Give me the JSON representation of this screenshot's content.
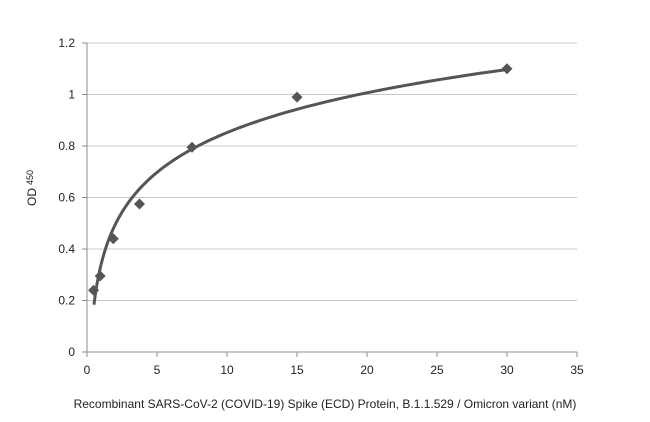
{
  "chart_data": {
    "type": "scatter",
    "title": "",
    "xlabel": "Recombinant SARS-CoV-2  (COVID-19) Spike (ECD)  Protein, B.1.1.529 / Omicron variant (nM)",
    "ylabel": "OD",
    "ylabel_subscript": "450",
    "xlim": [
      0,
      35
    ],
    "ylim": [
      0,
      1.2
    ],
    "x_ticks": [
      "0",
      "5",
      "10",
      "15",
      "20",
      "25",
      "30",
      "35"
    ],
    "y_ticks": [
      "0",
      "0.2",
      "0.4",
      "0.6",
      "0.8",
      "1",
      "1.2"
    ],
    "grid": "horizontal",
    "legend": "none",
    "marker_color": "#555555",
    "series": [
      {
        "points": [
          {
            "x": 0.47,
            "y": 0.24
          },
          {
            "x": 0.94,
            "y": 0.295
          },
          {
            "x": 1.88,
            "y": 0.44
          },
          {
            "x": 3.75,
            "y": 0.575
          },
          {
            "x": 7.5,
            "y": 0.795
          },
          {
            "x": 15,
            "y": 0.99
          },
          {
            "x": 30,
            "y": 1.1
          }
        ]
      }
    ]
  }
}
